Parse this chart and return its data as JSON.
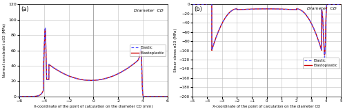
{
  "fig_width": 5.0,
  "fig_height": 1.62,
  "dpi": 100,
  "panel_a": {
    "label": "(a)",
    "xlabel": "X-coordinate of the point of calculation on the diameter CD (mm)",
    "ylabel": "Normal constraint σ33 (MPa)",
    "xlim": [
      -6,
      6
    ],
    "ylim": [
      0,
      120
    ],
    "xticks": [
      -6,
      -4,
      -2,
      0,
      2,
      4,
      6
    ],
    "yticks": [
      0,
      20,
      40,
      60,
      80,
      100,
      120
    ],
    "annot": "Diameter  CD",
    "elastic_color": "#5555ff",
    "elastoplastic_color": "#cc0000",
    "legend_elastic": "Elastic",
    "legend_elastoplastic": "Elastoplastic"
  },
  "panel_b": {
    "label": "(b)",
    "xlabel": "X-coordinate of the point of calculation on the diameter CD",
    "ylabel": "Shear stress σ23 (MPa)",
    "xlim": [
      -5,
      5
    ],
    "ylim": [
      -200,
      0
    ],
    "xticks": [
      -5,
      -4,
      -3,
      -2,
      -1,
      0,
      1,
      2,
      3,
      4,
      5
    ],
    "yticks": [
      0,
      -20,
      -40,
      -60,
      -80,
      -100,
      -120,
      -140,
      -160,
      -180,
      -200
    ],
    "annot": "Diameter  CD",
    "elastic_color": "#5555ff",
    "elastoplastic_color": "#cc0000",
    "legend_elastic": "Elastic",
    "legend_elastoplastic": "Elastoplastic"
  }
}
